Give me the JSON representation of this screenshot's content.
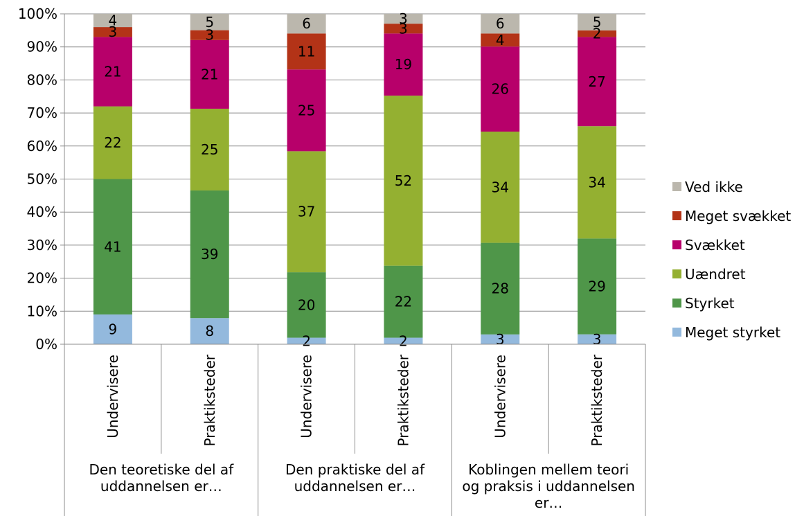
{
  "chart_data": {
    "type": "bar",
    "stacked": true,
    "percent_stacked": true,
    "title": "",
    "xlabel": "",
    "ylabel": "",
    "ylim": [
      0,
      100
    ],
    "y_ticks": [
      "0%",
      "10%",
      "20%",
      "30%",
      "40%",
      "50%",
      "60%",
      "70%",
      "80%",
      "90%",
      "100%"
    ],
    "grid": true,
    "legend_position": "right",
    "categories": [
      "Undervisere",
      "Praktiksteder",
      "Undervisere",
      "Praktiksteder",
      "Undervisere",
      "Praktiksteder"
    ],
    "groups": [
      {
        "label": [
          "Den teoretiske del af",
          "uddannelsen er…"
        ]
      },
      {
        "label": [
          "Den praktiske del af",
          "uddannelsen er…"
        ]
      },
      {
        "label": [
          "Koblingen mellem teori",
          "og praksis i uddannelsen",
          "er…"
        ]
      }
    ],
    "series": [
      {
        "name": "Meget styrket",
        "color": "#93b9dd",
        "values": [
          9,
          8,
          2,
          2,
          3,
          3
        ]
      },
      {
        "name": "Styrket",
        "color": "#4f9649",
        "values": [
          41,
          39,
          20,
          22,
          28,
          29
        ]
      },
      {
        "name": "Uændret",
        "color": "#94b031",
        "values": [
          22,
          25,
          37,
          52,
          34,
          34
        ]
      },
      {
        "name": "Svækket",
        "color": "#b7006a",
        "values": [
          21,
          21,
          25,
          19,
          26,
          27
        ]
      },
      {
        "name": "Meget svækket",
        "color": "#b33317",
        "values": [
          3,
          3,
          11,
          3,
          4,
          2
        ]
      },
      {
        "name": "Ved ikke",
        "color": "#bbb7ad",
        "values": [
          4,
          5,
          6,
          3,
          6,
          5
        ]
      }
    ]
  }
}
